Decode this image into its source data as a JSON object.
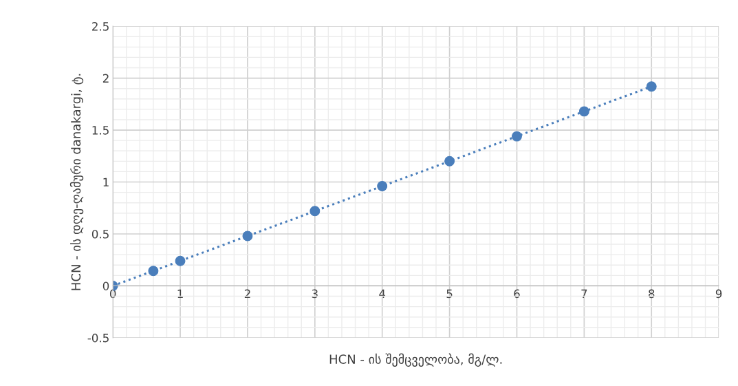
{
  "chart_data": {
    "type": "line",
    "xlabel": "HCN - ის შემცველობა, მგ/ლ.",
    "ylabel": "HCN - ის დღე-ღამური danakargi, ტ.",
    "x": [
      0,
      0.6,
      1,
      2,
      3,
      4,
      5,
      6,
      7,
      8
    ],
    "series": [
      {
        "color": "#4a7ebb",
        "values": [
          0,
          0.144,
          0.24,
          0.48,
          0.72,
          0.96,
          1.2,
          1.44,
          1.68,
          1.92
        ]
      }
    ],
    "xlim": [
      0,
      9
    ],
    "xticks": [
      0,
      1,
      2,
      3,
      4,
      5,
      6,
      7,
      8,
      9
    ],
    "ylim": [
      -0.5,
      2.5
    ],
    "yticks": [
      -0.5,
      0,
      0.5,
      1,
      1.5,
      2,
      2.5
    ],
    "grid": true,
    "marker": "circle",
    "line_style": "dotted",
    "legend": false
  }
}
